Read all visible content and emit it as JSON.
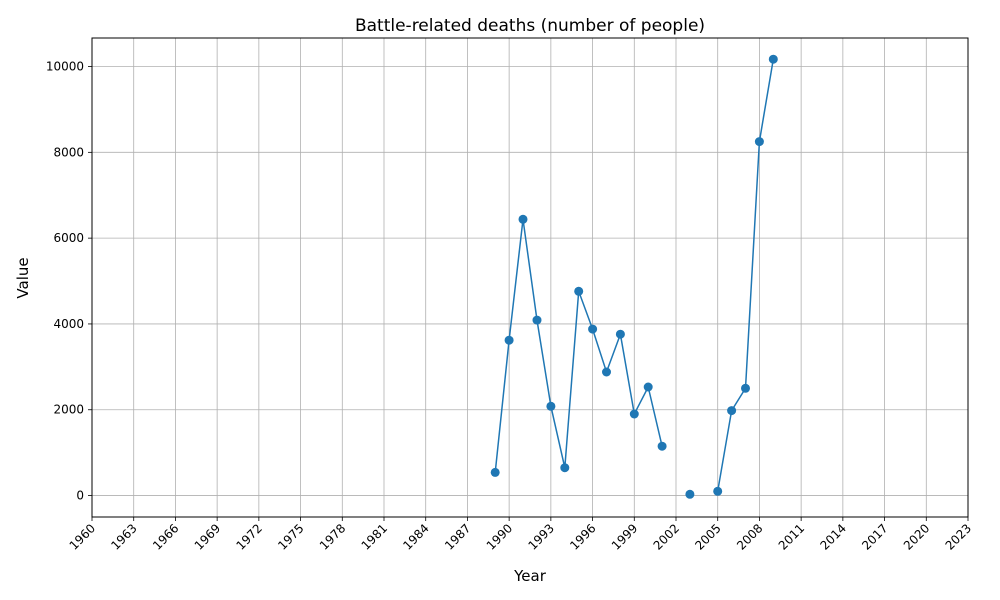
{
  "chart_data": {
    "type": "line",
    "title": "Battle-related deaths (number of people)",
    "xlabel": "Year",
    "ylabel": "Value",
    "xlim": [
      1960,
      2023
    ],
    "ylim": [
      -500,
      10665
    ],
    "x_ticks": [
      1960,
      1963,
      1966,
      1969,
      1972,
      1975,
      1978,
      1981,
      1984,
      1987,
      1990,
      1993,
      1996,
      1999,
      2002,
      2005,
      2008,
      2011,
      2014,
      2017,
      2020,
      2023
    ],
    "y_ticks": [
      0,
      2000,
      4000,
      6000,
      8000,
      10000
    ],
    "grid": true,
    "line_color": "#1f77b4",
    "series": [
      {
        "segments": [
          [
            {
              "x": 1989,
              "y": 540
            },
            {
              "x": 1990,
              "y": 3620
            },
            {
              "x": 1991,
              "y": 6440
            },
            {
              "x": 1992,
              "y": 4090
            },
            {
              "x": 1993,
              "y": 2080
            },
            {
              "x": 1994,
              "y": 650
            },
            {
              "x": 1995,
              "y": 4760
            },
            {
              "x": 1996,
              "y": 3880
            },
            {
              "x": 1997,
              "y": 2880
            },
            {
              "x": 1998,
              "y": 3760
            },
            {
              "x": 1999,
              "y": 1900
            },
            {
              "x": 2000,
              "y": 2530
            },
            {
              "x": 2001,
              "y": 1150
            }
          ],
          [
            {
              "x": 2003,
              "y": 30
            }
          ],
          [
            {
              "x": 2005,
              "y": 100
            },
            {
              "x": 2006,
              "y": 1980
            },
            {
              "x": 2007,
              "y": 2500
            },
            {
              "x": 2008,
              "y": 8250
            },
            {
              "x": 2009,
              "y": 10170
            }
          ]
        ]
      }
    ]
  }
}
